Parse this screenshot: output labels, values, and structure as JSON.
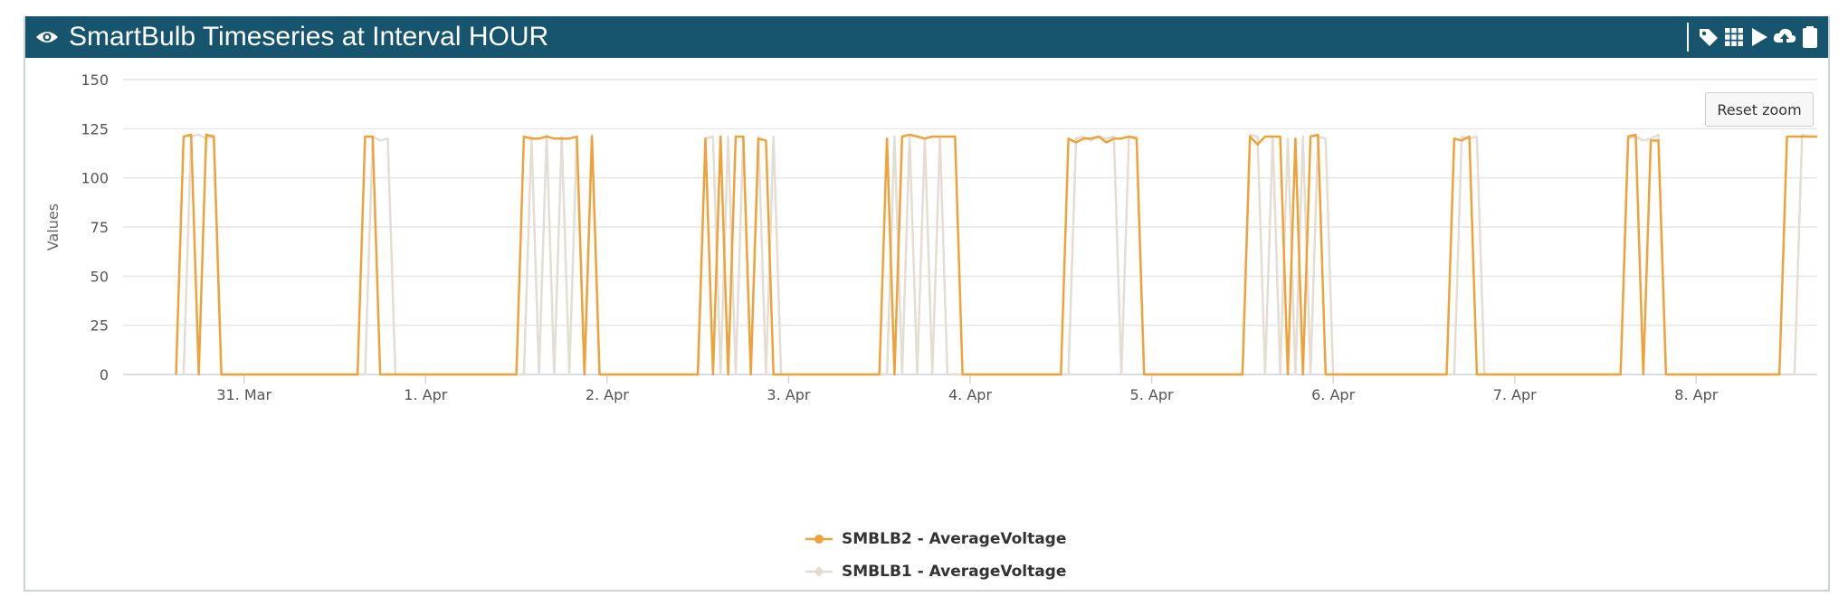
{
  "header": {
    "title": "SmartBulb Timeseries at Interval HOUR",
    "icons": [
      "eye-icon",
      "tag-icon",
      "grid-icon",
      "play-icon",
      "cloud-upload-icon",
      "clipboard-icon"
    ]
  },
  "reset_zoom_label": "Reset zoom",
  "chart_data": {
    "type": "line",
    "title": "",
    "xlabel": "",
    "ylabel": "Values",
    "ylim": [
      0,
      150
    ],
    "yticks": [
      0,
      25,
      50,
      75,
      100,
      125,
      150
    ],
    "xlim": [
      "2020-03-30T08:00",
      "2020-04-08T16:00"
    ],
    "xticks": [
      {
        "t": "2020-03-31T00:00",
        "label": "31. Mar"
      },
      {
        "t": "2020-04-01T00:00",
        "label": "1. Apr"
      },
      {
        "t": "2020-04-02T00:00",
        "label": "2. Apr"
      },
      {
        "t": "2020-04-03T00:00",
        "label": "3. Apr"
      },
      {
        "t": "2020-04-04T00:00",
        "label": "4. Apr"
      },
      {
        "t": "2020-04-05T00:00",
        "label": "5. Apr"
      },
      {
        "t": "2020-04-06T00:00",
        "label": "6. Apr"
      },
      {
        "t": "2020-04-07T00:00",
        "label": "7. Apr"
      },
      {
        "t": "2020-04-08T00:00",
        "label": "8. Apr"
      }
    ],
    "grid": true,
    "legend_position": "bottom-center",
    "series": [
      {
        "name": "SMBLB2 - AverageVoltage",
        "color": "#f0a23a",
        "marker": "circle",
        "points": [
          [
            "2020-03-30T15:00",
            0
          ],
          [
            "2020-03-30T16:00",
            121
          ],
          [
            "2020-03-30T17:00",
            122
          ],
          [
            "2020-03-30T18:00",
            0
          ],
          [
            "2020-03-30T19:00",
            122
          ],
          [
            "2020-03-30T20:00",
            121
          ],
          [
            "2020-03-30T21:00",
            0
          ],
          [
            "2020-03-31T15:00",
            0
          ],
          [
            "2020-03-31T16:00",
            121
          ],
          [
            "2020-03-31T17:00",
            121
          ],
          [
            "2020-03-31T18:00",
            0
          ],
          [
            "2020-03-31T21:00",
            0
          ],
          [
            "2020-04-01T12:00",
            0
          ],
          [
            "2020-04-01T13:00",
            121
          ],
          [
            "2020-04-01T14:00",
            120
          ],
          [
            "2020-04-01T15:00",
            120
          ],
          [
            "2020-04-01T16:00",
            121
          ],
          [
            "2020-04-01T17:00",
            120
          ],
          [
            "2020-04-01T18:00",
            120
          ],
          [
            "2020-04-01T19:00",
            120
          ],
          [
            "2020-04-01T20:00",
            121
          ],
          [
            "2020-04-01T21:00",
            0
          ],
          [
            "2020-04-01T22:00",
            121
          ],
          [
            "2020-04-01T23:00",
            0
          ],
          [
            "2020-04-02T12:00",
            0
          ],
          [
            "2020-04-02T13:00",
            120
          ],
          [
            "2020-04-02T14:00",
            0
          ],
          [
            "2020-04-02T15:00",
            121
          ],
          [
            "2020-04-02T16:00",
            0
          ],
          [
            "2020-04-02T17:00",
            121
          ],
          [
            "2020-04-02T18:00",
            121
          ],
          [
            "2020-04-02T19:00",
            0
          ],
          [
            "2020-04-02T20:00",
            120
          ],
          [
            "2020-04-02T21:00",
            119
          ],
          [
            "2020-04-02T22:00",
            0
          ],
          [
            "2020-04-03T12:00",
            0
          ],
          [
            "2020-04-03T13:00",
            120
          ],
          [
            "2020-04-03T14:00",
            0
          ],
          [
            "2020-04-03T15:00",
            121
          ],
          [
            "2020-04-03T16:00",
            122
          ],
          [
            "2020-04-03T17:00",
            121
          ],
          [
            "2020-04-03T18:00",
            120
          ],
          [
            "2020-04-03T19:00",
            121
          ],
          [
            "2020-04-03T20:00",
            121
          ],
          [
            "2020-04-03T21:00",
            121
          ],
          [
            "2020-04-03T22:00",
            121
          ],
          [
            "2020-04-03T23:00",
            0
          ],
          [
            "2020-04-04T12:00",
            0
          ],
          [
            "2020-04-04T13:00",
            120
          ],
          [
            "2020-04-04T14:00",
            118
          ],
          [
            "2020-04-04T15:00",
            120
          ],
          [
            "2020-04-04T16:00",
            120
          ],
          [
            "2020-04-04T17:00",
            121
          ],
          [
            "2020-04-04T18:00",
            118
          ],
          [
            "2020-04-04T19:00",
            120
          ],
          [
            "2020-04-04T20:00",
            120
          ],
          [
            "2020-04-04T21:00",
            121
          ],
          [
            "2020-04-04T22:00",
            120
          ],
          [
            "2020-04-04T23:00",
            0
          ],
          [
            "2020-04-05T12:00",
            0
          ],
          [
            "2020-04-05T13:00",
            121
          ],
          [
            "2020-04-05T14:00",
            117
          ],
          [
            "2020-04-05T15:00",
            121
          ],
          [
            "2020-04-05T16:00",
            121
          ],
          [
            "2020-04-05T17:00",
            121
          ],
          [
            "2020-04-05T18:00",
            0
          ],
          [
            "2020-04-05T19:00",
            120
          ],
          [
            "2020-04-05T20:00",
            0
          ],
          [
            "2020-04-05T21:00",
            121
          ],
          [
            "2020-04-05T22:00",
            122
          ],
          [
            "2020-04-05T23:00",
            0
          ],
          [
            "2020-04-06T15:00",
            0
          ],
          [
            "2020-04-06T16:00",
            120
          ],
          [
            "2020-04-06T17:00",
            119
          ],
          [
            "2020-04-06T18:00",
            121
          ],
          [
            "2020-04-06T19:00",
            0
          ],
          [
            "2020-04-07T14:00",
            0
          ],
          [
            "2020-04-07T15:00",
            121
          ],
          [
            "2020-04-07T16:00",
            122
          ],
          [
            "2020-04-07T17:00",
            0
          ],
          [
            "2020-04-07T18:00",
            119
          ],
          [
            "2020-04-07T19:00",
            119
          ],
          [
            "2020-04-07T20:00",
            0
          ],
          [
            "2020-04-08T11:00",
            0
          ],
          [
            "2020-04-08T12:00",
            121
          ],
          [
            "2020-04-08T13:00",
            121
          ],
          [
            "2020-04-08T14:00",
            121
          ],
          [
            "2020-04-08T15:00",
            121
          ],
          [
            "2020-04-08T16:00",
            121
          ]
        ]
      },
      {
        "name": "SMBLB1 - AverageVoltage",
        "color": "#e4ddd3",
        "marker": "diamond",
        "points": [
          [
            "2020-03-30T16:00",
            0
          ],
          [
            "2020-03-30T17:00",
            121
          ],
          [
            "2020-03-30T18:00",
            122
          ],
          [
            "2020-03-30T19:00",
            120
          ],
          [
            "2020-03-30T20:00",
            121
          ],
          [
            "2020-03-30T21:00",
            0
          ],
          [
            "2020-03-31T16:00",
            0
          ],
          [
            "2020-03-31T17:00",
            121
          ],
          [
            "2020-03-31T18:00",
            119
          ],
          [
            "2020-03-31T19:00",
            120
          ],
          [
            "2020-03-31T20:00",
            0
          ],
          [
            "2020-04-01T13:00",
            0
          ],
          [
            "2020-04-01T14:00",
            121
          ],
          [
            "2020-04-01T15:00",
            0
          ],
          [
            "2020-04-01T16:00",
            122
          ],
          [
            "2020-04-01T17:00",
            0
          ],
          [
            "2020-04-01T18:00",
            121
          ],
          [
            "2020-04-01T19:00",
            0
          ],
          [
            "2020-04-01T20:00",
            121
          ],
          [
            "2020-04-01T21:00",
            0
          ],
          [
            "2020-04-01T22:00",
            122
          ],
          [
            "2020-04-01T23:00",
            0
          ],
          [
            "2020-04-02T12:00",
            0
          ],
          [
            "2020-04-02T13:00",
            120
          ],
          [
            "2020-04-02T14:00",
            121
          ],
          [
            "2020-04-02T15:00",
            0
          ],
          [
            "2020-04-02T16:00",
            121
          ],
          [
            "2020-04-02T17:00",
            0
          ],
          [
            "2020-04-02T18:00",
            121
          ],
          [
            "2020-04-02T19:00",
            0
          ],
          [
            "2020-04-02T20:00",
            121
          ],
          [
            "2020-04-02T21:00",
            0
          ],
          [
            "2020-04-02T22:00",
            121
          ],
          [
            "2020-04-02T23:00",
            0
          ],
          [
            "2020-04-03T13:00",
            0
          ],
          [
            "2020-04-03T14:00",
            121
          ],
          [
            "2020-04-03T15:00",
            0
          ],
          [
            "2020-04-03T16:00",
            121
          ],
          [
            "2020-04-03T17:00",
            0
          ],
          [
            "2020-04-03T18:00",
            120
          ],
          [
            "2020-04-03T19:00",
            0
          ],
          [
            "2020-04-03T20:00",
            121
          ],
          [
            "2020-04-03T21:00",
            0
          ],
          [
            "2020-04-04T13:00",
            0
          ],
          [
            "2020-04-04T14:00",
            120
          ],
          [
            "2020-04-04T15:00",
            121
          ],
          [
            "2020-04-04T16:00",
            119
          ],
          [
            "2020-04-04T17:00",
            121
          ],
          [
            "2020-04-04T18:00",
            120
          ],
          [
            "2020-04-04T19:00",
            121
          ],
          [
            "2020-04-04T20:00",
            0
          ],
          [
            "2020-04-04T21:00",
            121
          ],
          [
            "2020-04-04T22:00",
            121
          ],
          [
            "2020-04-04T23:00",
            0
          ],
          [
            "2020-04-05T12:00",
            0
          ],
          [
            "2020-04-05T13:00",
            122
          ],
          [
            "2020-04-05T14:00",
            121
          ],
          [
            "2020-04-05T15:00",
            0
          ],
          [
            "2020-04-05T16:00",
            121
          ],
          [
            "2020-04-05T17:00",
            0
          ],
          [
            "2020-04-05T18:00",
            120
          ],
          [
            "2020-04-05T19:00",
            0
          ],
          [
            "2020-04-05T20:00",
            121
          ],
          [
            "2020-04-05T21:00",
            0
          ],
          [
            "2020-04-05T22:00",
            121
          ],
          [
            "2020-04-05T23:00",
            120
          ],
          [
            "2020-04-06T00:00",
            0
          ],
          [
            "2020-04-06T16:00",
            0
          ],
          [
            "2020-04-06T17:00",
            121
          ],
          [
            "2020-04-06T18:00",
            120
          ],
          [
            "2020-04-06T19:00",
            121
          ],
          [
            "2020-04-06T20:00",
            0
          ],
          [
            "2020-04-07T14:00",
            0
          ],
          [
            "2020-04-07T15:00",
            120
          ],
          [
            "2020-04-07T16:00",
            121
          ],
          [
            "2020-04-07T17:00",
            119
          ],
          [
            "2020-04-07T18:00",
            120
          ],
          [
            "2020-04-07T19:00",
            122
          ],
          [
            "2020-04-07T20:00",
            0
          ],
          [
            "2020-04-08T13:00",
            0
          ],
          [
            "2020-04-08T14:00",
            122
          ],
          [
            "2020-04-08T15:00",
            121
          ],
          [
            "2020-04-08T16:00",
            121
          ]
        ]
      }
    ]
  }
}
